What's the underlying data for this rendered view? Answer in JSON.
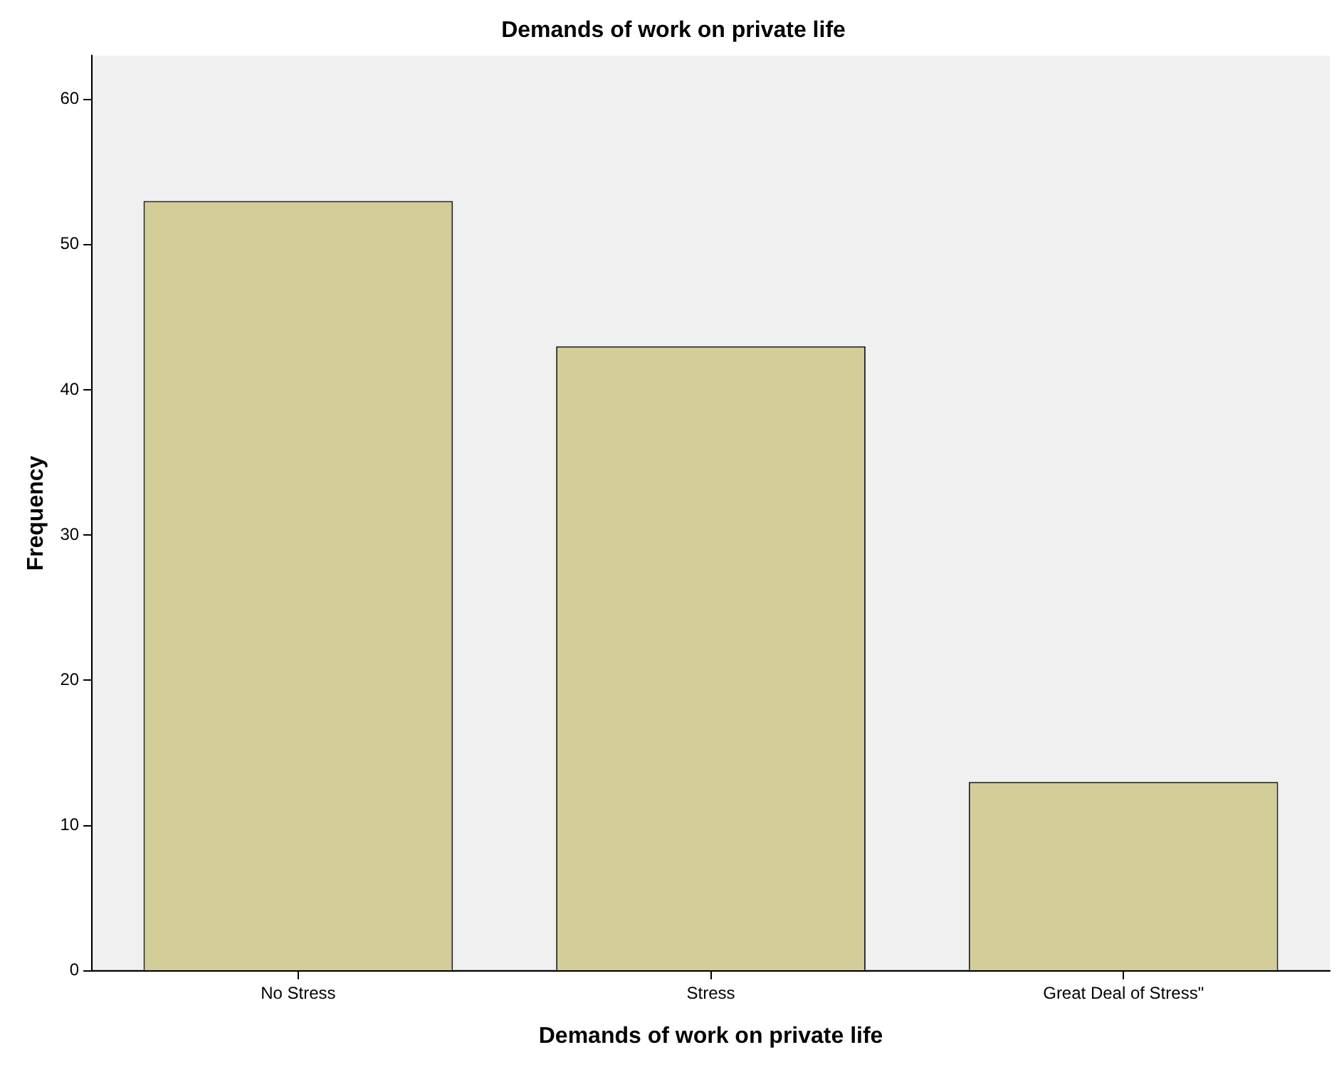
{
  "chart_data": {
    "type": "bar",
    "title": "Demands of work on private life",
    "xlabel": "Demands of work on private life",
    "ylabel": "Frequency",
    "categories": [
      "No Stress",
      "Stress",
      "Great Deal of Stress\""
    ],
    "values": [
      53,
      43,
      13
    ],
    "color": "#d3ce97",
    "ylim": [
      0,
      63
    ],
    "yticks": [
      0,
      10,
      20,
      30,
      40,
      50,
      60
    ],
    "grid": false
  }
}
